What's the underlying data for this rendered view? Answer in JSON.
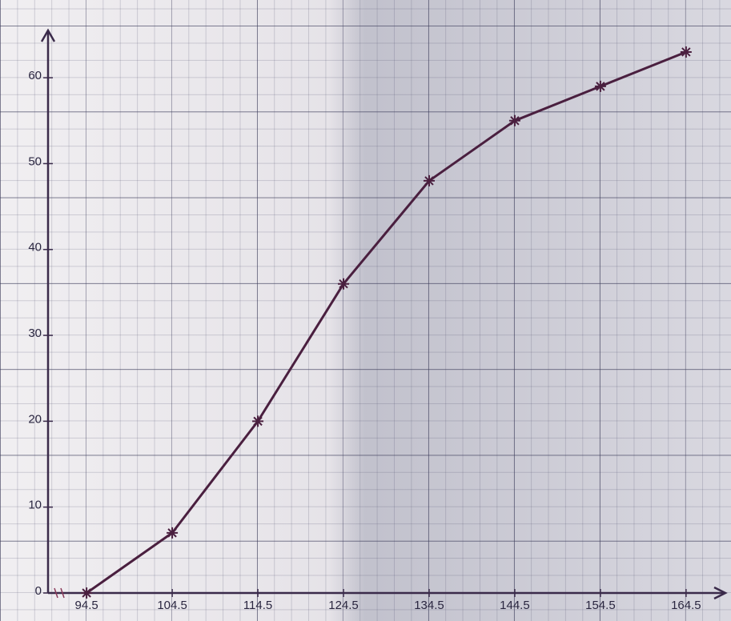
{
  "chart_data": {
    "type": "line",
    "x": [
      94.5,
      104.5,
      114.5,
      124.5,
      134.5,
      144.5,
      154.5,
      164.5
    ],
    "values": [
      0,
      7,
      20,
      36,
      48,
      55,
      59,
      63
    ],
    "color": "#4a1f3f",
    "xlim": [
      90,
      169
    ],
    "xticks": [
      94.5,
      104.5,
      114.5,
      124.5,
      134.5,
      144.5,
      154.5,
      164.5
    ],
    "ylim": [
      0,
      65
    ],
    "yticks": [
      0,
      10,
      20,
      30,
      40,
      50,
      60
    ]
  }
}
